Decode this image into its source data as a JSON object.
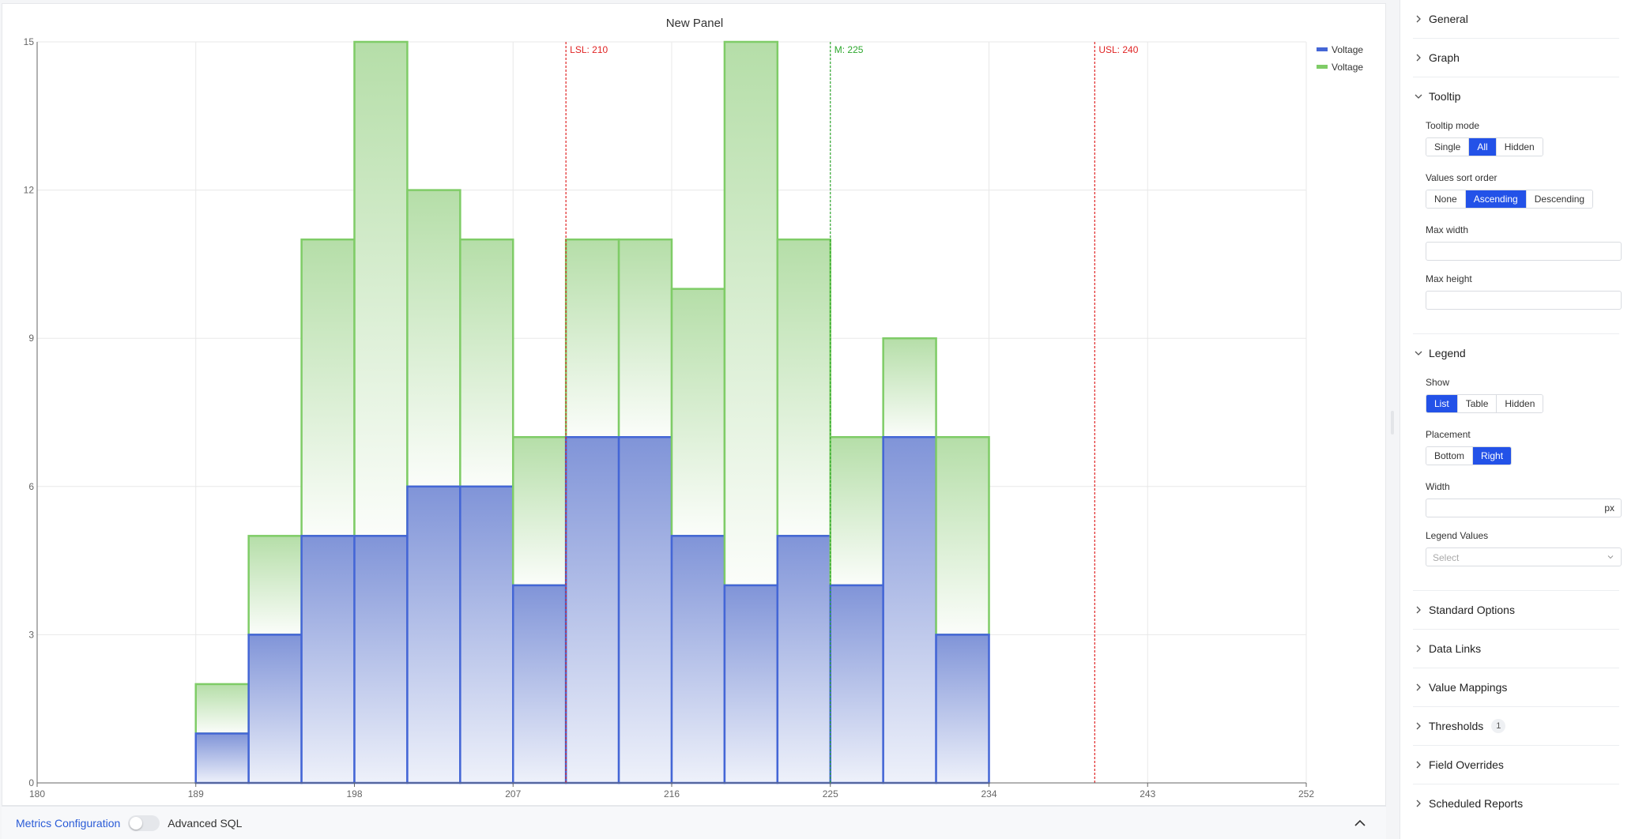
{
  "panel": {
    "title": "New Panel"
  },
  "chart_data": {
    "type": "bar",
    "title": "New Panel",
    "xlim": [
      180,
      252
    ],
    "ylim": [
      0,
      15
    ],
    "x_ticks": [
      180,
      189,
      198,
      207,
      216,
      225,
      234,
      243,
      252
    ],
    "y_ticks": [
      0,
      3,
      6,
      9,
      12,
      15
    ],
    "bin_edges": [
      189,
      192,
      195,
      198,
      201,
      204,
      207,
      210,
      213,
      216,
      219,
      222,
      225,
      228,
      231,
      234
    ],
    "series": [
      {
        "name": "Voltage",
        "color": "#4466d6",
        "values": [
          1,
          3,
          5,
          5,
          6,
          6,
          4,
          7,
          7,
          5,
          4,
          5,
          4,
          7,
          3
        ]
      },
      {
        "name": "Voltage",
        "color": "#7fcc67",
        "values": [
          2,
          5,
          11,
          15,
          12,
          11,
          7,
          11,
          11,
          10,
          15,
          11,
          7,
          9,
          7
        ]
      }
    ],
    "reference_lines": [
      {
        "label": "LSL: 210",
        "x": 210,
        "color": "#e02424"
      },
      {
        "label": "M: 225",
        "x": 225,
        "color": "#2ea82e"
      },
      {
        "label": "USL: 240",
        "x": 240,
        "color": "#e02424"
      }
    ],
    "grid": true,
    "legend": "top-right"
  },
  "bottom_bar": {
    "metrics_label": "Metrics Configuration",
    "advanced_sql_label": "Advanced SQL"
  },
  "sidebar": {
    "general": "General",
    "graph": "Graph",
    "tooltip": {
      "title": "Tooltip",
      "mode_label": "Tooltip mode",
      "mode_options": [
        "Single",
        "All",
        "Hidden"
      ],
      "mode_selected": "All",
      "sort_label": "Values sort order",
      "sort_options": [
        "None",
        "Ascending",
        "Descending"
      ],
      "sort_selected": "Ascending",
      "max_width_label": "Max width",
      "max_height_label": "Max height"
    },
    "legend": {
      "title": "Legend",
      "show_label": "Show",
      "show_options": [
        "List",
        "Table",
        "Hidden"
      ],
      "show_selected": "List",
      "placement_label": "Placement",
      "placement_options": [
        "Bottom",
        "Right"
      ],
      "placement_selected": "Right",
      "width_label": "Width",
      "width_unit": "px",
      "values_label": "Legend Values",
      "values_placeholder": "Select"
    },
    "standard_options": "Standard Options",
    "data_links": "Data Links",
    "value_mappings": "Value Mappings",
    "thresholds": "Thresholds",
    "thresholds_count": "1",
    "field_overrides": "Field Overrides",
    "scheduled_reports": "Scheduled Reports"
  }
}
